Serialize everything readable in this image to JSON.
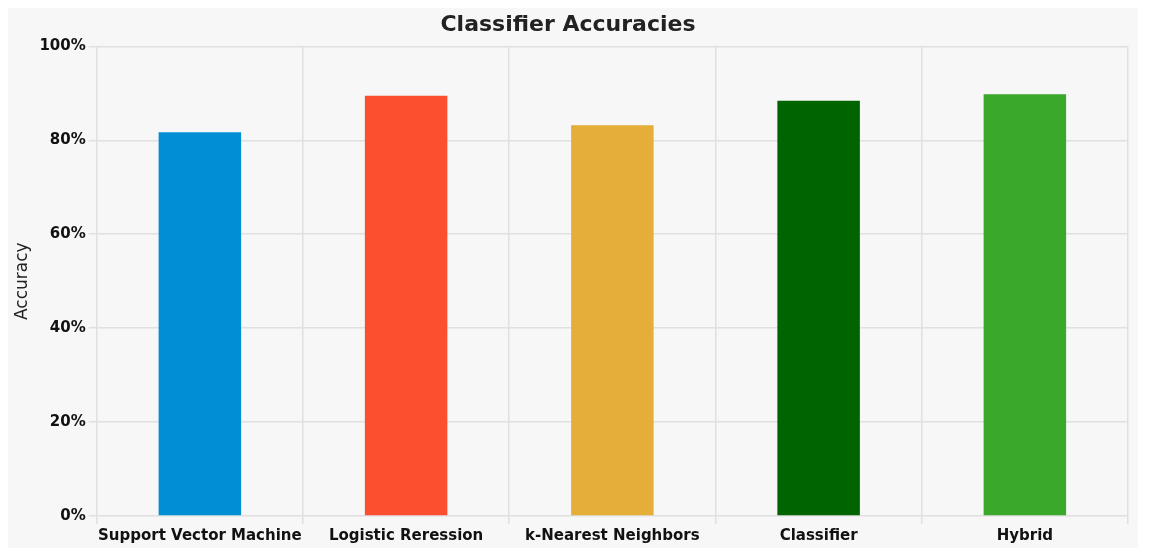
{
  "chart_data": {
    "type": "bar",
    "title": "Classifier Accuracies",
    "ylabel": "Accuracy",
    "categories": [
      "Support Vector Machine",
      "Logistic Reression",
      "k-Nearest Neighbors",
      "Classifier",
      "Hybrid"
    ],
    "values": [
      81.7,
      89.5,
      83.2,
      88.4,
      89.8
    ],
    "colors": [
      "#008fd5",
      "#fc4f30",
      "#e5ae38",
      "#006400",
      "#3aa82a"
    ],
    "ylim": [
      0,
      100
    ],
    "yticks": [
      {
        "value": 0,
        "label": "0%"
      },
      {
        "value": 20,
        "label": "20%"
      },
      {
        "value": 40,
        "label": "40%"
      },
      {
        "value": 60,
        "label": "60%"
      },
      {
        "value": 80,
        "label": "80%"
      },
      {
        "value": 100,
        "label": "100%"
      }
    ],
    "grid": true
  }
}
